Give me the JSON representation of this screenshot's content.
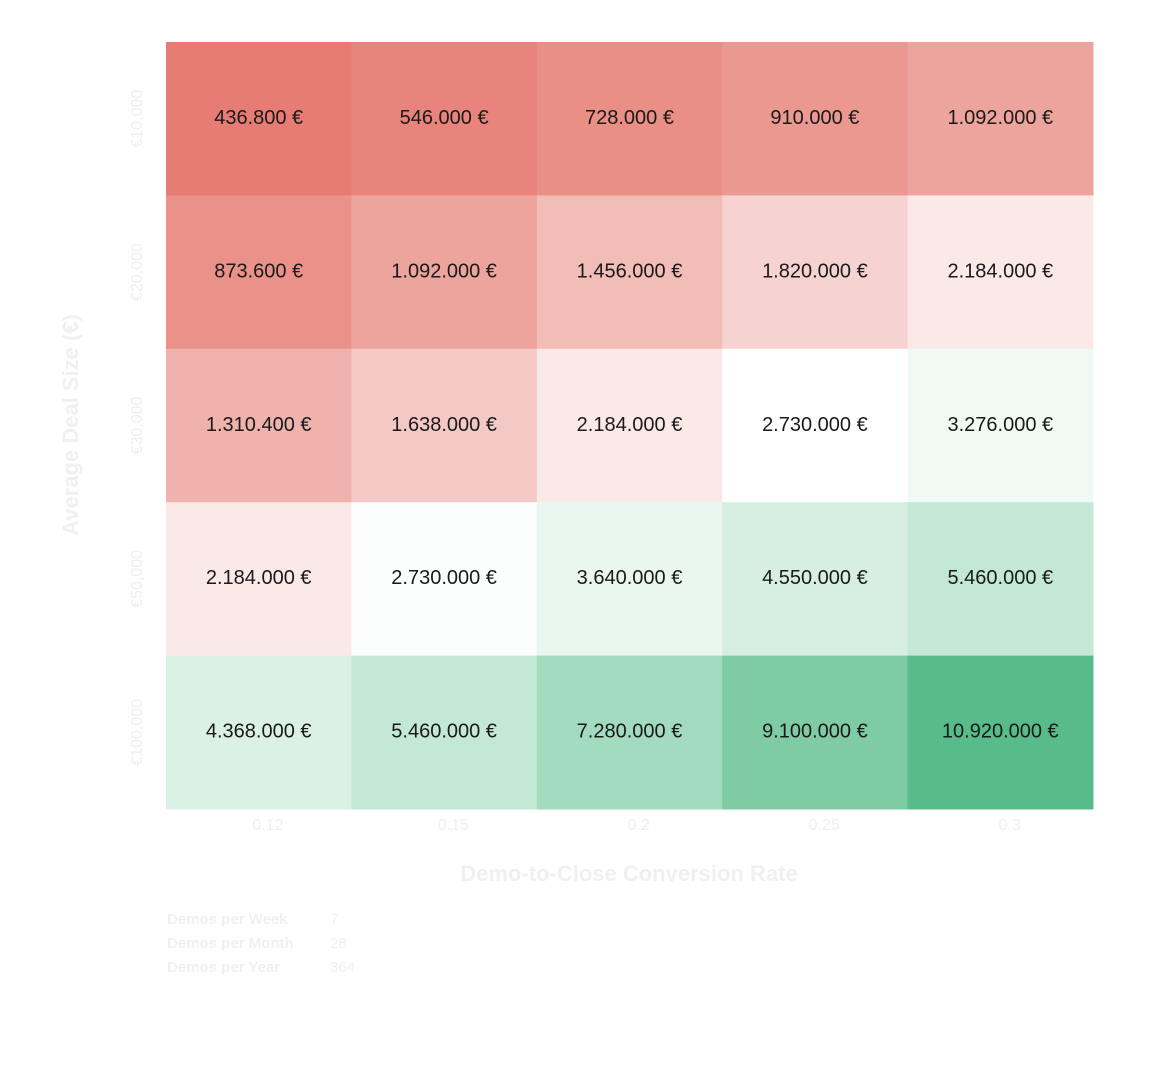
{
  "chart_data": {
    "type": "heatmap",
    "x_label": "Demo-to-Close Conversion Rate",
    "y_label": "Average Deal Size (€)",
    "categories": [
      "0.12",
      "0.15",
      "0.2",
      "0.25",
      "0.3"
    ],
    "y_categories": [
      "€10,000",
      "€20,000",
      "€30,000",
      "€50,000",
      "€100,000"
    ],
    "values": [
      [
        436800,
        546000,
        728000,
        910000,
        1092000
      ],
      [
        873600,
        1092000,
        1456000,
        1820000,
        2184000
      ],
      [
        1310400,
        1638000,
        2184000,
        2730000,
        3276000
      ],
      [
        2184000,
        2730000,
        3640000,
        4550000,
        5460000
      ],
      [
        4368000,
        5460000,
        7280000,
        9100000,
        10920000
      ]
    ],
    "value_labels": [
      [
        "436.800 €",
        "546.000 €",
        "728.000 €",
        "910.000 €",
        "1.092.000 €"
      ],
      [
        "873.600 €",
        "1.092.000 €",
        "1.456.000 €",
        "1.820.000 €",
        "2.184.000 €"
      ],
      [
        "1.310.400 €",
        "1.638.000 €",
        "2.184.000 €",
        "2.730.000 €",
        "3.276.000 €"
      ],
      [
        "2.184.000 €",
        "2.730.000 €",
        "3.640.000 €",
        "4.550.000 €",
        "5.460.000 €"
      ],
      [
        "4.368.000 €",
        "5.460.000 €",
        "7.280.000 €",
        "9.100.000 €",
        "10.920.000 €"
      ]
    ],
    "colors": [
      [
        "#e67c73",
        "#e8847b",
        "#ea8f86",
        "#eb9890",
        "#eda49d"
      ],
      [
        "#ea928a",
        "#eda49d",
        "#f2bcb7",
        "#f6d3d0",
        "#fbe9e7"
      ],
      [
        "#f0b2ad",
        "#f4c8c5",
        "#fbe9e7",
        "#ffffff",
        "#f0f9f4"
      ],
      [
        "#fbe9e7",
        "#fcfefd",
        "#eaf7f0",
        "#d7efe2",
        "#c4e8d6"
      ],
      [
        "#dcf1e6",
        "#c4e8d6",
        "#a3dbbf",
        "#7ecba4",
        "#57bb8a"
      ]
    ]
  },
  "summary": {
    "rows": [
      {
        "label": "Demos per Week",
        "value": 7
      },
      {
        "label": "Demos per Month",
        "value": 28
      },
      {
        "label": "Demos per Year",
        "value": 364
      }
    ]
  }
}
